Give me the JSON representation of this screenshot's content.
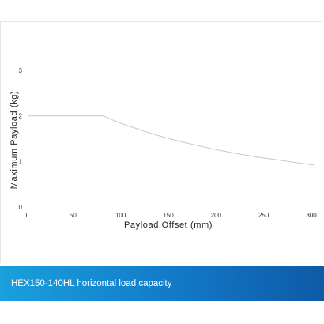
{
  "caption": "HEX150-140HL horizontal load capacity",
  "colors": {
    "line": "#c8c8c8",
    "caption_start": "#1aa0dc",
    "caption_end": "#0e5aa6"
  },
  "chart_data": {
    "type": "line",
    "title": "",
    "xlabel": "Payload Offset (mm)",
    "ylabel": "Maximum Payload (kg)",
    "xlim": [
      0,
      300
    ],
    "ylim": [
      0,
      3
    ],
    "xticks": [
      0,
      50,
      100,
      150,
      200,
      250,
      300
    ],
    "yticks": [
      0,
      1,
      2,
      3
    ],
    "grid": false,
    "series": [
      {
        "x": [
          0,
          80,
          90,
          100,
          120,
          140,
          160,
          180,
          200,
          220,
          240,
          260,
          280,
          300
        ],
        "y": [
          2.0,
          2.0,
          1.9,
          1.82,
          1.68,
          1.55,
          1.44,
          1.34,
          1.25,
          1.17,
          1.1,
          1.04,
          0.98,
          0.92
        ]
      }
    ]
  }
}
